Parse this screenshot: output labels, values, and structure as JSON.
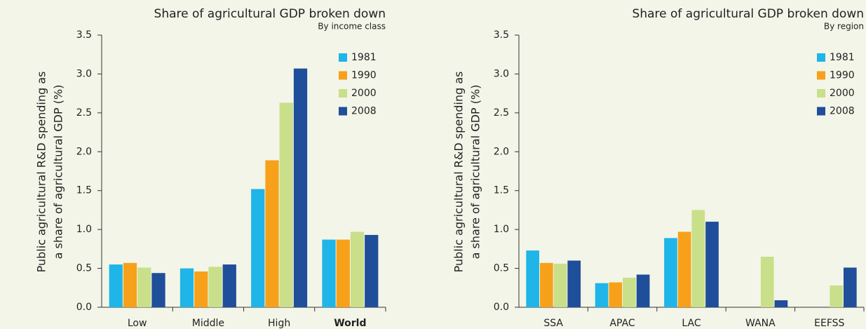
{
  "chart_data": [
    {
      "type": "bar",
      "title": "Share of agricultural GDP broken down",
      "subtitle": "By income class",
      "y_label": [
        "Public agricultural R&D spending as",
        "a share of agricultural GDP (%)"
      ],
      "categories": [
        "Low",
        "Middle",
        "High",
        "World"
      ],
      "series": [
        {
          "name": "1981",
          "color": "#1fb5e8",
          "values": [
            0.55,
            0.5,
            1.52,
            0.87
          ]
        },
        {
          "name": "1990",
          "color": "#f7a11a",
          "values": [
            0.57,
            0.46,
            1.89,
            0.87
          ]
        },
        {
          "name": "2000",
          "color": "#c9df8a",
          "values": [
            0.51,
            0.52,
            2.63,
            0.97
          ]
        },
        {
          "name": "2008",
          "color": "#1f4e9b",
          "values": [
            0.44,
            0.55,
            3.07,
            0.93
          ]
        }
      ],
      "ylim": [
        0,
        3.5
      ],
      "yticks": [
        {
          "value": 0,
          "label": "0.0"
        },
        0.5,
        {
          "value": 1,
          "label": "1.0"
        },
        1.5,
        {
          "value": 2,
          "label": "2.0"
        },
        2.5,
        {
          "value": 3,
          "label": "3.0"
        },
        3.5
      ]
    },
    {
      "type": "bar",
      "title": "Share of agricultural GDP broken down",
      "subtitle": "By region",
      "y_label": [
        "Public agricultural R&D spending as",
        "a share of agricultural GDP  (%)"
      ],
      "categories": [
        "SSA",
        "APAC",
        "LAC",
        "WANA",
        "EEFSS"
      ],
      "series": [
        {
          "name": "1981",
          "color": "#1fb5e8",
          "values": [
            0.73,
            0.31,
            0.89,
            null,
            null
          ]
        },
        {
          "name": "1990",
          "color": "#f7a11a",
          "values": [
            0.57,
            0.32,
            0.97,
            null,
            null
          ]
        },
        {
          "name": "2000",
          "color": "#c9df8a",
          "values": [
            0.56,
            0.38,
            1.25,
            0.65,
            0.28
          ]
        },
        {
          "name": "2008",
          "color": "#1f4e9b",
          "values": [
            0.6,
            0.42,
            1.1,
            0.09,
            0.51
          ]
        }
      ],
      "ylim": [
        0,
        3.5
      ],
      "yticks": [
        {
          "value": 0,
          "label": "0.0"
        },
        0.5,
        {
          "value": 1,
          "label": "1.0"
        },
        1.5,
        {
          "value": 2,
          "label": "2.0"
        },
        2.5,
        {
          "value": 3,
          "label": "3.0"
        },
        3.5
      ]
    }
  ]
}
